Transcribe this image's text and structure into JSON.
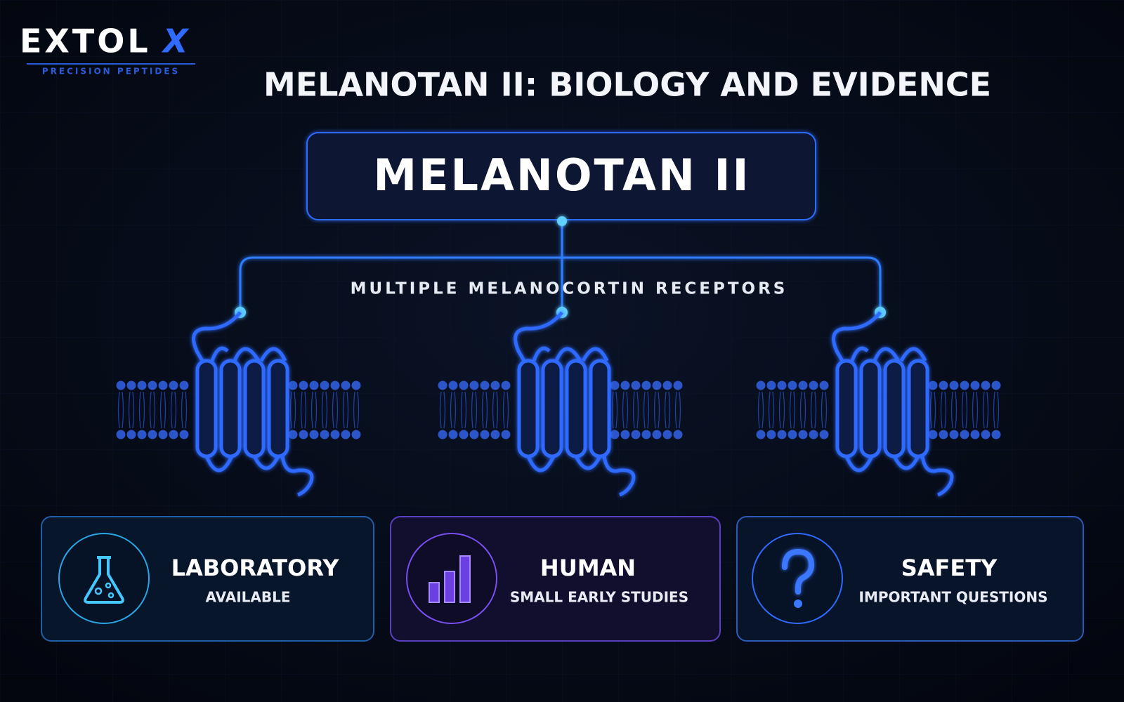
{
  "logo": {
    "name": "EXTOL",
    "mark": "X",
    "tagline": "PRECISION PEPTIDES"
  },
  "title": "MELANOTAN II: BIOLOGY AND EVIDENCE",
  "node": {
    "label": "MELANOTAN II"
  },
  "receptors_label": "MULTIPLE MELANOCORTIN RECEPTORS",
  "cards": [
    {
      "title": "LABORATORY",
      "subtitle": "AVAILABLE"
    },
    {
      "title": "HUMAN",
      "subtitle": "SMALL EARLY STUDIES"
    },
    {
      "title": "SAFETY",
      "subtitle": "IMPORTANT QUESTIONS"
    }
  ]
}
